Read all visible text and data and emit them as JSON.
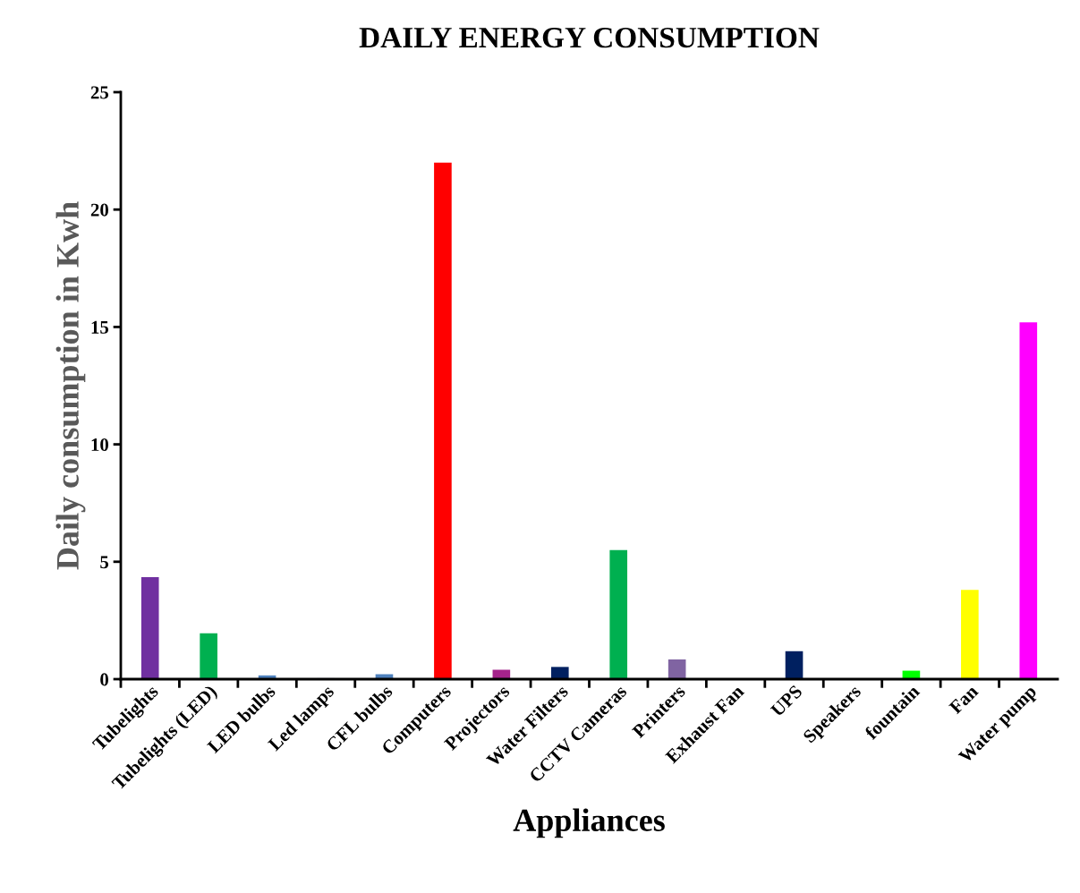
{
  "chart_data": {
    "type": "bar",
    "title": "DAILY ENERGY CONSUMPTION",
    "xlabel": "Appliances",
    "ylabel": "Daily consumption in Kwh",
    "categories": [
      "Tubelights",
      "Tubelights (LED)",
      "LED bulbs",
      "Led lamps",
      "CFL bulbs",
      "Computers",
      "Projectors",
      "Water Filters",
      "CCTV Cameras",
      "Printers",
      "Exhaust Fan",
      "UPS",
      "Speakers",
      "fountain",
      "Fan",
      "Water pump"
    ],
    "values": [
      4.34,
      1.95,
      0.16,
      0.04,
      0.21,
      22.0,
      0.4,
      0.52,
      5.5,
      0.84,
      0,
      1.19,
      0,
      0.36,
      3.8,
      15.2
    ],
    "colors": [
      "#7030a0",
      "#00b050",
      "#4f81bd",
      "#4f81bd",
      "#4f81bd",
      "#ff0000",
      "#a5238b",
      "#002060",
      "#00b050",
      "#8064a2",
      "#4f81bd",
      "#002060",
      "#4f81bd",
      "#00ff00",
      "#ffff00",
      "#ff00ff"
    ],
    "ylim": [
      0,
      25
    ],
    "yticks": [
      0,
      5,
      10,
      15,
      20,
      25
    ],
    "grid": false,
    "legend": false
  }
}
